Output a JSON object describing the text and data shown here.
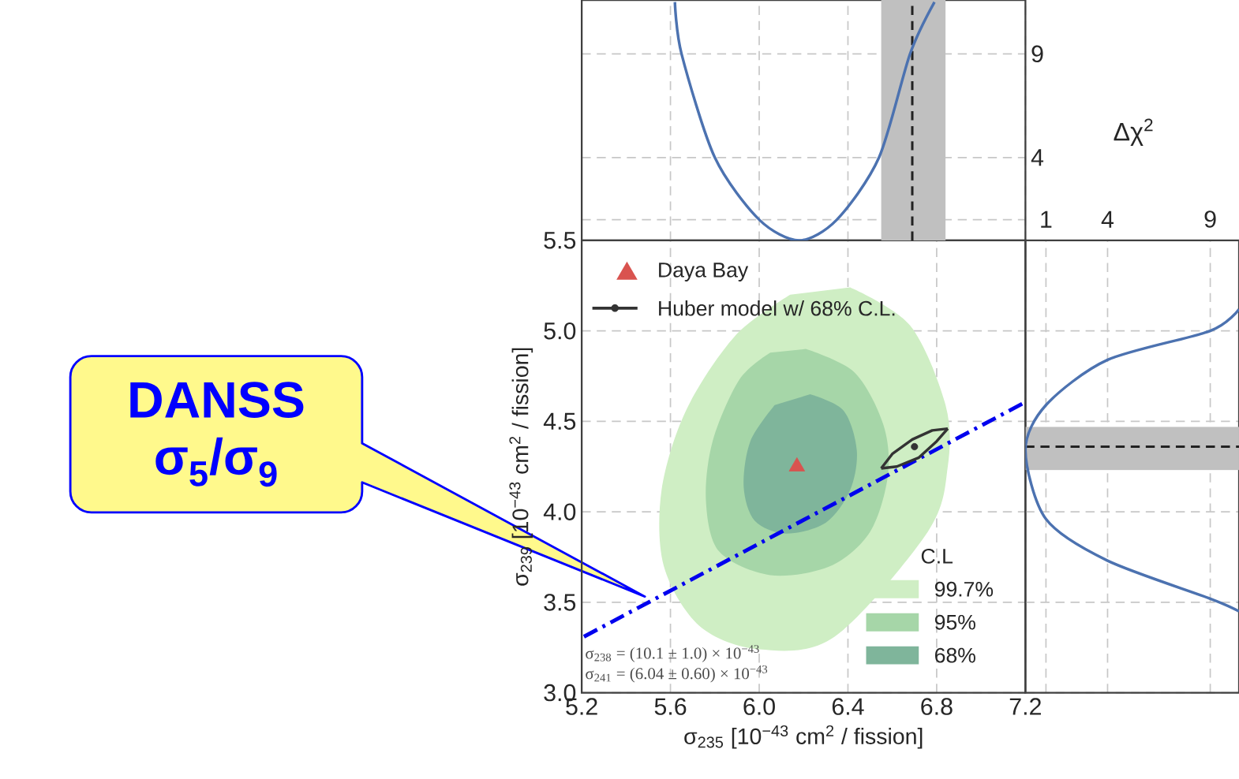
{
  "chart_data": [
    {
      "type": "scatter",
      "xlabel": "σ$_{235}$ [10$^{−43}$ cm$^{2}$ / fission]",
      "ylabel": "σ$_{239}$ [10$^{−43}$ cm$^{2}$ / fission]",
      "xlim": [
        5.2,
        7.2
      ],
      "ylim": [
        3.0,
        5.5
      ],
      "xticks": [
        5.2,
        5.6,
        {
          "value": 6,
          "label": "6.0"
        },
        6.4,
        6.8,
        7.2
      ],
      "yticks": [
        {
          "value": 3,
          "label": "3.0"
        },
        3.5,
        {
          "value": 4,
          "label": "4.0"
        },
        4.5,
        {
          "value": 5,
          "label": "5.0"
        },
        5.5
      ],
      "grid": true,
      "legend": "top left",
      "legend_title": "C.L",
      "series": [
        {
          "name": "68%",
          "type": "area",
          "color": "#7fb59b",
          "x": [
            6.23,
            6.38,
            6.44,
            6.41,
            6.3,
            6.12,
            5.98,
            5.93,
            5.96,
            6.07
          ],
          "values": [
            4.65,
            4.56,
            4.34,
            4.12,
            3.94,
            3.88,
            3.95,
            4.14,
            4.39,
            4.59
          ]
        },
        {
          "name": "95%",
          "type": "area",
          "color": "#a6d6a8",
          "x": [
            6.21,
            6.43,
            6.56,
            6.58,
            6.5,
            6.32,
            6.05,
            5.82,
            5.76,
            5.79,
            5.91,
            6.05
          ],
          "values": [
            4.9,
            4.77,
            4.48,
            4.2,
            3.89,
            3.7,
            3.65,
            3.78,
            4.06,
            4.39,
            4.73,
            4.88
          ]
        },
        {
          "name": "99.7%",
          "type": "area",
          "color": "#cfeec4",
          "x": [
            6.41,
            6.68,
            6.84,
            6.85,
            6.76,
            6.59,
            6.34,
            6.0,
            5.73,
            5.57,
            5.56,
            5.67,
            5.89,
            6.14
          ],
          "values": [
            5.24,
            5.03,
            4.59,
            4.25,
            3.89,
            null,
            3.31,
            3.24,
            3.37,
            3.7,
            4.12,
            4.56,
            4.97,
            5.2
          ]
        },
        {
          "name": "Daya Bay",
          "type": "scatter",
          "marker": "triangle",
          "color": "#d9534f",
          "x": [
            6.17
          ],
          "values": [
            4.25
          ]
        },
        {
          "type": "line",
          "color": "#0000ee",
          "line_style": "dashed",
          "x": [
            5.21,
            7.19
          ],
          "values": [
            3.31,
            4.6
          ]
        },
        {
          "name": "Huber model w/ 68% C.L.",
          "type": "line",
          "color": "#333333",
          "x": [
            6.55,
            6.6,
            6.69,
            6.78,
            6.85
          ],
          "values": [
            4.24,
            4.32,
            4.4,
            4.45,
            4.46
          ]
        },
        {
          "type": "line",
          "color": "#333333",
          "x": [
            6.55,
            6.62,
            6.72,
            6.8,
            6.85
          ],
          "values": [
            4.24,
            4.25,
            4.3,
            4.39,
            4.46
          ]
        },
        {
          "type": "scatter",
          "marker": "circle",
          "color": "#333333",
          "x": [
            6.7
          ],
          "values": [
            4.36
          ]
        }
      ],
      "annotations": [
        "DANSS σ$_{5}$/σ$_{9}$",
        "σ$_{238}$ = (10.1 ± 1.0) × 10$^{−43}$",
        "σ$_{241}$ = (6.04 ± 0.60) × 10$^{−43}$"
      ]
    },
    {
      "type": "line",
      "ylabel": "Δχ$^{2}$",
      "xlim": [
        5.2,
        7.2
      ],
      "ylim": [
        0,
        11.6
      ],
      "xticks": [
        5.2,
        5.6,
        6.0,
        6.4,
        6.8,
        7.2
      ],
      "yticks": [
        {
          "value": 1,
          "label": null
        },
        4,
        9
      ],
      "tick_labels": "y",
      "grid": true,
      "series": [
        {
          "color": "#4c72b0",
          "x": [
            5.62,
            5.65,
            5.8,
            6.0,
            6.18,
            6.35,
            6.54,
            6.68,
            6.79
          ],
          "values": [
            11.5,
            9,
            4,
            1,
            0,
            1,
            4,
            9,
            11.5
          ]
        }
      ],
      "ref_lines": [
        {
          "axis": "x",
          "value": 6.69,
          "color": "#222222",
          "line_style": "dashed"
        }
      ],
      "bands": [
        {
          "axis": "x",
          "from": 6.55,
          "to": 6.84,
          "color": "#c0c0c0"
        }
      ]
    },
    {
      "type": "line",
      "xlim": [
        0,
        10.4
      ],
      "ylim": [
        3.0,
        5.5
      ],
      "xticks": [
        1,
        4,
        9
      ],
      "yticks": [
        3,
        3.5,
        4,
        4.5,
        5,
        5.5
      ],
      "tick_labels": "x",
      "grid": true,
      "series": [
        {
          "color": "#4c72b0",
          "x": [
            10.4,
            9,
            4,
            1,
            0,
            1,
            4,
            9,
            10.4
          ],
          "values": [
            5.12,
            5.0,
            4.84,
            4.59,
            4.34,
            3.96,
            3.73,
            3.52,
            3.45
          ]
        }
      ],
      "ref_lines": [
        {
          "axis": "y",
          "value": 4.36,
          "color": "#222222",
          "line_style": "dashed"
        }
      ],
      "bands": [
        {
          "axis": "y",
          "from": 4.23,
          "to": 4.47,
          "color": "#c0c0c0"
        }
      ]
    }
  ]
}
